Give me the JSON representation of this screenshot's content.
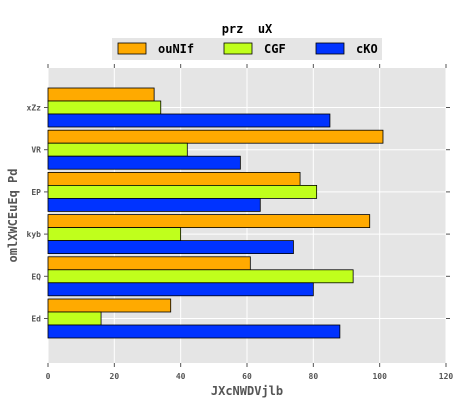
{
  "chart_data": {
    "type": "bar",
    "orientation": "horizontal",
    "categories": [
      "xZz",
      "VR",
      "EP",
      "kyb",
      "EQ",
      "Ed"
    ],
    "series": [
      {
        "name": "ouNIf",
        "color": "#ffaa00",
        "values": [
          32,
          101,
          76,
          97,
          61,
          37
        ]
      },
      {
        "name": "CGF",
        "color": "#c0ff1c",
        "values": [
          34,
          42,
          81,
          40,
          92,
          16
        ]
      },
      {
        "name": "cKO",
        "color": "#0033ff",
        "values": [
          85,
          58,
          64,
          74,
          80,
          88
        ]
      }
    ],
    "legend_title": "prz  uX",
    "legend_position": "top-center",
    "xlabel": "JXcNWDVjlb",
    "ylabel": "omlXWCEuEq Pd",
    "xlim": [
      0,
      120
    ],
    "xticks": [
      0,
      20,
      40,
      60,
      80,
      100,
      120
    ],
    "grid": true,
    "background": "#e5e5e5",
    "grid_color": "#ffffff"
  }
}
